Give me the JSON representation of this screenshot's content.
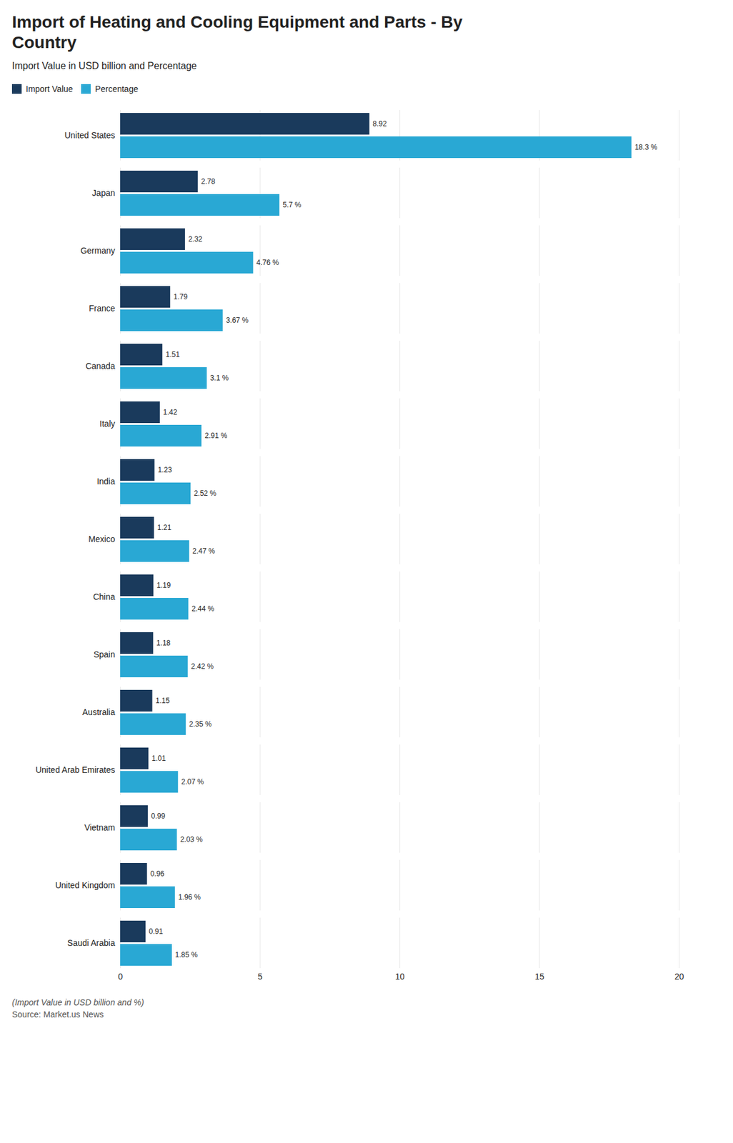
{
  "chart_data": {
    "type": "bar",
    "orientation": "horizontal",
    "title": "Import of Heating and Cooling Equipment and Parts - By\nCountry",
    "subtitle": "Import Value in USD billion and Percentage",
    "footnote": "(Import Value in USD billion and %)",
    "source": "Source: Market.us News",
    "categories": [
      "Saudi Arabia",
      "United Kingdom",
      "Vietnam",
      "United Arab Emirates",
      "Australia",
      "Spain",
      "China",
      "Mexico",
      "India",
      "Italy",
      "Canada",
      "France",
      "Germany",
      "Japan",
      "United States"
    ],
    "series": [
      {
        "name": "Import Value",
        "color": "#1a3a5c",
        "values": [
          0.91,
          0.96,
          0.99,
          1.01,
          1.15,
          1.18,
          1.19,
          1.21,
          1.23,
          1.42,
          1.51,
          1.79,
          2.32,
          2.78,
          8.92
        ]
      },
      {
        "name": "Percentage",
        "color": "#29a8d4",
        "values": [
          1.85,
          1.96,
          2.03,
          2.07,
          2.35,
          2.42,
          2.44,
          2.47,
          2.52,
          2.91,
          3.1,
          3.67,
          4.76,
          5.7,
          18.3
        ],
        "value_labels": [
          "1.85 %",
          "1.96 %",
          "2.03 %",
          "2.07 %",
          "2.35 %",
          "2.42 %",
          "2.44 %",
          "2.47 %",
          "2.52 %",
          "2.91 %",
          "3.1 %",
          "3.67 %",
          "4.76 %",
          "5.7 %",
          "18.3 %"
        ]
      }
    ],
    "xlim": [
      0,
      20
    ],
    "xticks": [
      0,
      5,
      10,
      15,
      20
    ],
    "grid": true,
    "data_labels": true,
    "legend": "top-left"
  }
}
